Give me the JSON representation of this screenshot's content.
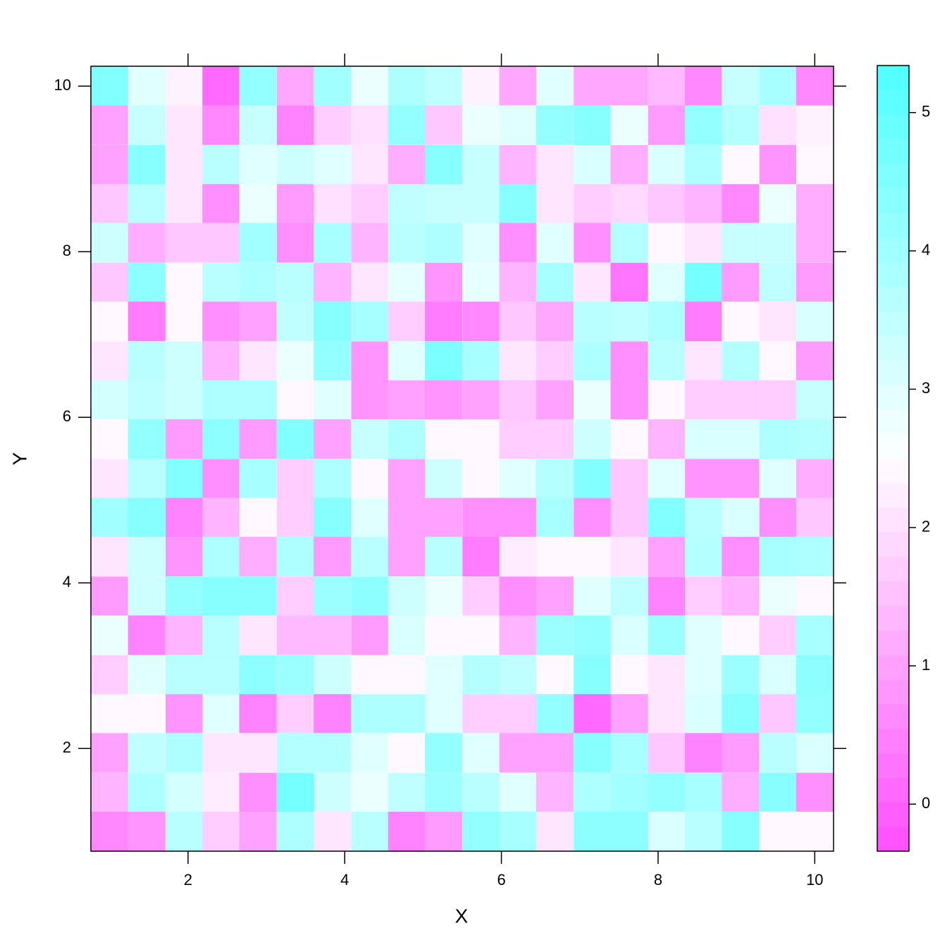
{
  "chart_data": {
    "type": "heatmap",
    "xlabel": "X",
    "ylabel": "Y",
    "x": [
      1,
      1.47,
      1.95,
      2.42,
      2.89,
      3.37,
      3.84,
      4.32,
      4.79,
      5.26,
      5.74,
      6.21,
      6.68,
      7.16,
      7.63,
      8.11,
      8.58,
      9.05,
      9.53,
      10
    ],
    "y": [
      10,
      9.53,
      9.05,
      8.58,
      8.11,
      7.63,
      7.16,
      6.68,
      6.21,
      5.74,
      5.26,
      4.79,
      4.32,
      3.84,
      3.37,
      2.89,
      2.42,
      1.95,
      1.47,
      1
    ],
    "z": [
      [
        4.5,
        3.0,
        2.3,
        0.1,
        4.2,
        1.1,
        4.0,
        2.8,
        3.8,
        3.5,
        2.3,
        1.1,
        3.0,
        1.1,
        1.1,
        1.4,
        0.6,
        3.4,
        3.9,
        0.6
      ],
      [
        1.0,
        3.4,
        2.1,
        0.6,
        3.4,
        0.5,
        1.7,
        2.0,
        4.2,
        1.6,
        2.8,
        3.0,
        4.2,
        4.4,
        2.8,
        0.9,
        4.2,
        3.7,
        2.0,
        2.3
      ],
      [
        1.0,
        4.4,
        2.1,
        3.6,
        3.0,
        3.3,
        3.0,
        2.1,
        1.2,
        4.4,
        3.4,
        1.3,
        2.1,
        3.1,
        1.2,
        3.1,
        3.8,
        2.4,
        0.8,
        2.4
      ],
      [
        1.6,
        3.6,
        2.1,
        0.7,
        2.8,
        0.9,
        2.0,
        1.7,
        3.5,
        3.4,
        3.4,
        4.4,
        2.1,
        1.7,
        1.9,
        1.6,
        1.3,
        0.6,
        2.8,
        1.2
      ],
      [
        3.3,
        1.2,
        1.6,
        1.6,
        4.0,
        0.7,
        3.9,
        1.3,
        3.6,
        3.8,
        3.0,
        0.7,
        3.0,
        0.7,
        3.7,
        2.4,
        2.1,
        3.4,
        3.4,
        1.2
      ],
      [
        1.6,
        4.3,
        2.4,
        3.6,
        3.8,
        3.6,
        1.3,
        2.1,
        2.9,
        0.8,
        2.9,
        1.3,
        3.9,
        2.1,
        0.3,
        3.0,
        4.7,
        0.9,
        3.5,
        0.9
      ],
      [
        2.4,
        0.4,
        2.4,
        0.7,
        1.0,
        3.5,
        4.4,
        3.9,
        1.7,
        0.4,
        0.6,
        1.6,
        1.1,
        3.6,
        3.5,
        3.8,
        0.4,
        2.4,
        2.1,
        3.1
      ],
      [
        2.1,
        3.6,
        3.3,
        1.3,
        2.1,
        2.8,
        4.2,
        0.8,
        3.0,
        4.6,
        3.9,
        2.1,
        1.7,
        3.8,
        0.7,
        3.6,
        2.1,
        3.7,
        2.4,
        0.9
      ],
      [
        3.2,
        3.5,
        3.3,
        3.8,
        3.8,
        2.4,
        3.0,
        0.8,
        1.0,
        0.8,
        1.0,
        1.6,
        1.0,
        2.8,
        0.7,
        2.4,
        1.7,
        1.7,
        1.7,
        3.4
      ],
      [
        2.4,
        4.2,
        0.9,
        4.3,
        0.9,
        4.5,
        1.0,
        3.4,
        3.8,
        2.4,
        2.4,
        1.7,
        1.7,
        3.3,
        2.4,
        1.3,
        3.1,
        3.1,
        3.8,
        3.7
      ],
      [
        2.1,
        3.6,
        4.5,
        0.7,
        3.9,
        1.7,
        3.8,
        2.4,
        1.0,
        3.3,
        2.4,
        3.0,
        3.7,
        4.5,
        1.6,
        3.0,
        0.8,
        0.8,
        3.0,
        1.2
      ],
      [
        4.0,
        4.4,
        0.5,
        1.3,
        2.4,
        1.7,
        4.4,
        3.0,
        1.0,
        1.0,
        0.7,
        0.7,
        3.9,
        0.7,
        1.6,
        4.5,
        3.6,
        3.1,
        0.7,
        1.6
      ],
      [
        2.1,
        3.3,
        0.8,
        3.8,
        1.2,
        3.8,
        0.9,
        3.6,
        1.0,
        3.6,
        0.4,
        2.2,
        2.4,
        2.4,
        2.1,
        1.0,
        3.7,
        0.7,
        3.9,
        3.8
      ],
      [
        0.9,
        3.3,
        4.2,
        4.4,
        4.4,
        1.7,
        4.1,
        4.3,
        3.3,
        2.8,
        1.7,
        0.7,
        1.0,
        3.0,
        3.5,
        0.5,
        1.7,
        1.3,
        2.8,
        2.4
      ],
      [
        2.8,
        0.5,
        1.3,
        3.6,
        2.1,
        1.4,
        1.4,
        0.9,
        3.1,
        2.4,
        2.4,
        1.3,
        4.1,
        4.2,
        3.1,
        4.1,
        3.0,
        2.4,
        1.7,
        3.9
      ],
      [
        1.7,
        3.0,
        3.6,
        3.6,
        4.3,
        4.1,
        3.3,
        2.4,
        2.4,
        3.0,
        3.7,
        3.5,
        2.4,
        4.4,
        2.4,
        2.1,
        3.0,
        4.1,
        3.1,
        4.3
      ],
      [
        2.4,
        2.4,
        0.8,
        3.0,
        0.5,
        1.7,
        0.5,
        3.8,
        3.8,
        3.0,
        1.7,
        1.7,
        4.2,
        0.1,
        1.0,
        2.1,
        3.1,
        4.4,
        1.6,
        4.2
      ],
      [
        1.0,
        3.5,
        3.8,
        2.1,
        2.1,
        3.7,
        3.7,
        3.0,
        2.4,
        4.2,
        3.0,
        1.0,
        1.0,
        4.4,
        3.9,
        1.6,
        0.5,
        0.9,
        3.6,
        3.1
      ],
      [
        1.3,
        3.8,
        3.2,
        2.2,
        0.7,
        4.7,
        3.3,
        2.8,
        3.5,
        4.1,
        3.6,
        3.0,
        1.3,
        3.8,
        4.0,
        4.2,
        3.9,
        1.2,
        4.4,
        0.7
      ],
      [
        0.6,
        0.8,
        3.6,
        1.7,
        1.0,
        3.8,
        2.1,
        3.6,
        0.5,
        0.9,
        4.2,
        3.9,
        2.1,
        4.3,
        4.3,
        3.1,
        3.6,
        4.4,
        2.4,
        2.4
      ]
    ],
    "xlim": [
      0.76,
      10.24
    ],
    "ylim": [
      0.76,
      10.24
    ],
    "xticks": [
      2,
      4,
      6,
      8,
      10
    ],
    "yticks": [
      2,
      4,
      6,
      8,
      10
    ],
    "zlim": [
      -0.34,
      5.34
    ],
    "zticks": [
      0,
      1,
      2,
      3,
      4,
      5
    ],
    "low_color": "#ff4dff",
    "mid_color": "#ffffff",
    "high_color": "#4dffff"
  }
}
